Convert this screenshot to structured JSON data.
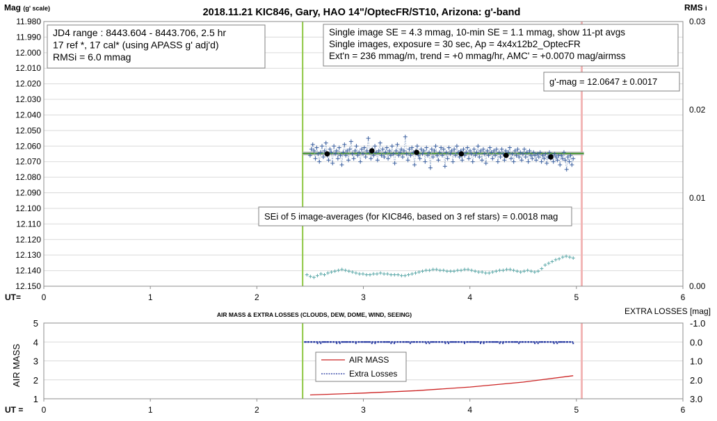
{
  "chart_data": [
    {
      "type": "scatter",
      "title": "2018.11.21 KIC846, Gary, HAO 14\"/OptecFR/ST10, Arizona: g'-band",
      "ylabel": "Mag",
      "ylabel_sub": "(g' scale)",
      "y2label": "RMS",
      "y2label_sub": "i",
      "xlabel": "UT=",
      "ylim": [
        11.98,
        12.15
      ],
      "y_inverted": true,
      "y2lim": [
        0.0,
        0.03
      ],
      "xlim": [
        0,
        6
      ],
      "y_ticks": [
        "11.980",
        "11.990",
        "12.000",
        "12.010",
        "12.020",
        "12.030",
        "12.040",
        "12.050",
        "12.060",
        "12.070",
        "12.080",
        "12.090",
        "12.100",
        "12.110",
        "12.120",
        "12.130",
        "12.140",
        "12.150"
      ],
      "y2_ticks": [
        "0.00",
        "0.01",
        "0.02",
        "0.03"
      ],
      "x_ticks": [
        "0",
        "1",
        "2",
        "3",
        "4",
        "5",
        "6"
      ],
      "grid": "horizontal",
      "vertical_lines": {
        "start_ut": 2.43,
        "end_ut": 5.05,
        "start_color": "#8dc641",
        "end_color": "#f2b6b6"
      },
      "mean_mag": 12.0647,
      "info_left": [
        "JD4 range : 8443.604 - 8443.706,  2.5  hr",
        "17 ref *, 17 cal* (using APASS g' adj'd)",
        "RMSi = 6.0 mmag"
      ],
      "info_right": [
        "Single image SE = 4.3 mmag, 10-min SE = 1.1 mmag, show  11-pt avgs",
        "Single images, exposure = 30 sec, Ap = 4x4x12b2_OptecFR",
        "Ext'n = 236 mmag/m, trend =  +0 mmag/hr, AMC' = +0.0070 mag/airmss"
      ],
      "result_label": "g'-mag = 12.0647 ± 0.0017",
      "sei_label": "SEi of 5 image-averages (for KIC846, based on 3 ref stars) = 0.0018 mag",
      "avg_points": [
        {
          "x": 2.66,
          "y": 12.065
        },
        {
          "x": 3.08,
          "y": 12.063
        },
        {
          "x": 3.5,
          "y": 12.064
        },
        {
          "x": 3.92,
          "y": 12.065
        },
        {
          "x": 4.34,
          "y": 12.066
        },
        {
          "x": 4.76,
          "y": 12.067
        }
      ],
      "mag_series_y": [
        12.066,
        12.062,
        12.059,
        12.063,
        12.068,
        12.061,
        12.065,
        12.07,
        12.064,
        12.06,
        12.067,
        12.063,
        12.058,
        12.066,
        12.069,
        12.062,
        12.064,
        12.071,
        12.06,
        12.065,
        12.063,
        12.068,
        12.061,
        12.066,
        12.072,
        12.064,
        12.059,
        12.066,
        12.063,
        12.069,
        12.062,
        12.057,
        12.065,
        12.068,
        12.063,
        12.06,
        12.066,
        12.064,
        12.07,
        12.062,
        12.065,
        12.061,
        12.067,
        12.063,
        12.055,
        12.064,
        12.068,
        12.062,
        12.066,
        12.06,
        12.064,
        12.069,
        12.063,
        12.058,
        12.066,
        12.062,
        12.067,
        12.064,
        12.061,
        12.068,
        12.063,
        12.066,
        12.06,
        12.065,
        12.071,
        12.063,
        12.059,
        12.066,
        12.064,
        12.062,
        12.067,
        12.063,
        12.054,
        12.065,
        12.069,
        12.062,
        12.066,
        12.061,
        12.064,
        12.072,
        12.063,
        12.06,
        12.066,
        12.068,
        12.062,
        12.065,
        12.063,
        12.07,
        12.061,
        12.066,
        12.064,
        12.074,
        12.062,
        12.067,
        12.063,
        12.06,
        12.066,
        12.069,
        12.064,
        12.061,
        12.066,
        12.062,
        12.073,
        12.064,
        12.068,
        12.061,
        12.065,
        12.063,
        12.07,
        12.062,
        12.066,
        12.06,
        12.064,
        12.067,
        12.063,
        12.069,
        12.062,
        12.066,
        12.064,
        12.061,
        12.068,
        12.063,
        12.065,
        12.07,
        12.062,
        12.066,
        12.064,
        12.06,
        12.067,
        12.063,
        12.069,
        12.062,
        12.065,
        12.071,
        12.063,
        12.066,
        12.061,
        12.064,
        12.068,
        12.063,
        12.066,
        12.062,
        12.07,
        12.064,
        12.067,
        12.062,
        12.065,
        12.069,
        12.063,
        12.066,
        12.064,
        12.061,
        12.068,
        12.065,
        12.07,
        12.063,
        12.066,
        12.062,
        12.067,
        12.064,
        12.069,
        12.065,
        12.062,
        12.067,
        12.064,
        12.07,
        12.063,
        12.066,
        12.068,
        12.064,
        12.066,
        12.069,
        12.065,
        12.067,
        12.064,
        12.07,
        12.066,
        12.068,
        12.065,
        12.071,
        12.067,
        12.064,
        12.068,
        12.066,
        12.07,
        12.065,
        12.067,
        12.069,
        12.066,
        12.072,
        12.066,
        12.068,
        12.064,
        12.069,
        12.075,
        12.067,
        12.07,
        12.066,
        12.072,
        12.068
      ],
      "rms_series_y": [
        0.0013,
        0.0011,
        0.001,
        0.0012,
        0.0014,
        0.0013,
        0.0015,
        0.0016,
        0.0017,
        0.0018,
        0.0019,
        0.0018,
        0.0017,
        0.0016,
        0.0015,
        0.0014,
        0.0014,
        0.0013,
        0.0013,
        0.0014,
        0.0014,
        0.0015,
        0.0014,
        0.0014,
        0.0013,
        0.0013,
        0.0013,
        0.0012,
        0.0012,
        0.0013,
        0.0014,
        0.0015,
        0.0016,
        0.0017,
        0.0018,
        0.0018,
        0.0019,
        0.0019,
        0.0018,
        0.0018,
        0.0017,
        0.0017,
        0.0017,
        0.0018,
        0.0018,
        0.0019,
        0.0019,
        0.0018,
        0.0017,
        0.0016,
        0.0016,
        0.0015,
        0.0015,
        0.0016,
        0.0017,
        0.0018,
        0.0018,
        0.0019,
        0.0019,
        0.0018,
        0.0017,
        0.0016,
        0.0017,
        0.0018,
        0.0017,
        0.0016,
        0.0017,
        0.002,
        0.0024,
        0.0026,
        0.0028,
        0.003,
        0.0031,
        0.0033,
        0.0034,
        0.0033,
        0.0032
      ]
    },
    {
      "type": "line",
      "title": "AIR MASS & EXTRA LOSSES (CLOUDS, DEW, DOME, WIND, SEEING)",
      "ylabel": "AIR MASS",
      "y2label": "EXTRA LOSSES [mag]",
      "xlabel": "UT =",
      "xlim": [
        0,
        6
      ],
      "ylim": [
        1,
        5
      ],
      "y2lim": [
        -1.0,
        3.0
      ],
      "y2_inverted": true,
      "y_ticks": [
        "1",
        "2",
        "3",
        "4",
        "5"
      ],
      "y2_ticks": [
        "-1.0",
        "0.0",
        "1.0",
        "2.0",
        "3.0"
      ],
      "x_ticks": [
        "0",
        "1",
        "2",
        "3",
        "4",
        "5",
        "6"
      ],
      "grid": "horizontal",
      "vertical_lines": {
        "start_ut": 2.43,
        "end_ut": 5.05,
        "start_color": "#8dc641",
        "end_color": "#f2b6b6"
      },
      "legend": "center-left",
      "series": [
        {
          "name": "AIR MASS",
          "color": "#cc2222",
          "x": [
            2.5,
            3.0,
            3.5,
            4.0,
            4.5,
            4.97
          ],
          "y": [
            1.2,
            1.3,
            1.43,
            1.62,
            1.88,
            2.22
          ]
        },
        {
          "name": "Extra Losses",
          "color": "#1a2e9c",
          "x_start": 2.45,
          "x_end": 4.97,
          "y_level": 0.0
        }
      ]
    }
  ]
}
